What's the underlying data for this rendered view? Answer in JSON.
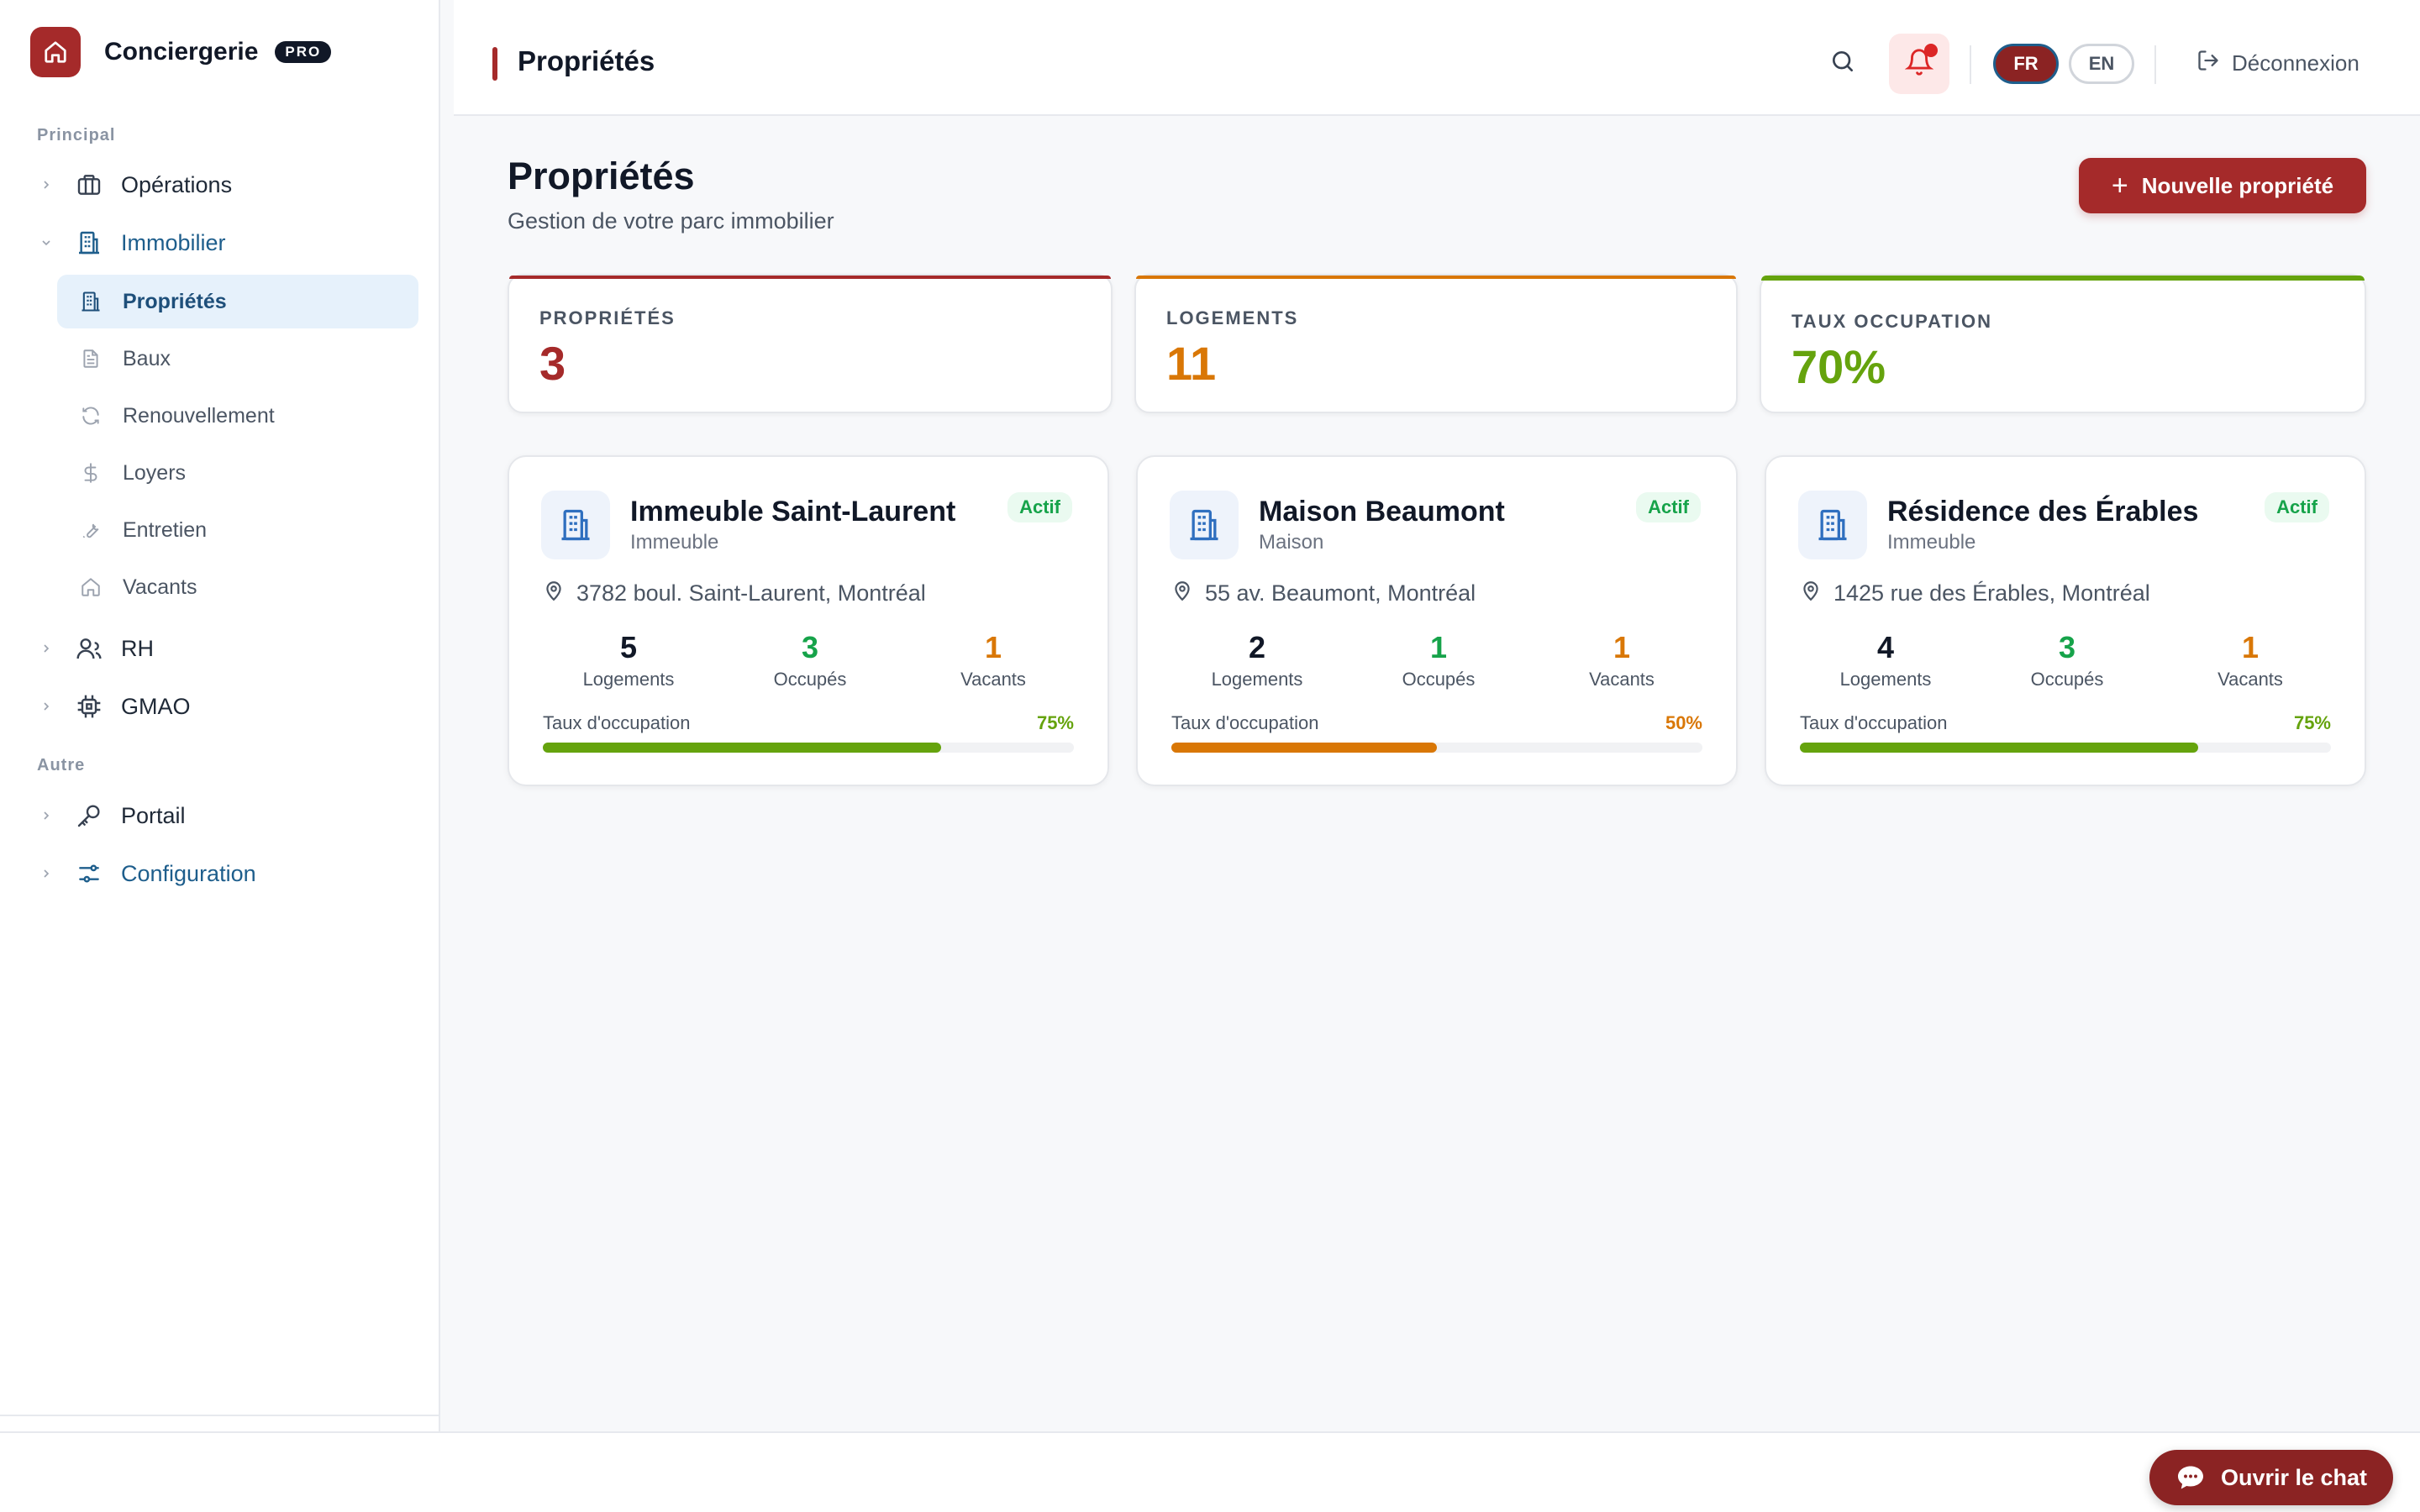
{
  "brand": {
    "name": "Conciergerie",
    "badge": "PRO"
  },
  "sidebar": {
    "sections": {
      "principal": "Principal",
      "autre": "Autre"
    },
    "items": {
      "operations": "Opérations",
      "immobilier": "Immobilier",
      "rh": "RH",
      "gmao": "GMAO",
      "portail": "Portail",
      "configuration": "Configuration"
    },
    "subitems": {
      "proprietes": "Propriétés",
      "baux": "Baux",
      "renouvellement": "Renouvellement",
      "loyers": "Loyers",
      "entretien": "Entretien",
      "vacants": "Vacants"
    }
  },
  "topbar": {
    "title": "Propriétés",
    "lang_fr": "FR",
    "lang_en": "EN",
    "logout": "Déconnexion"
  },
  "main": {
    "title": "Propriétés",
    "subtitle": "Gestion de votre parc immobilier",
    "new_button": "Nouvelle propriété",
    "stats": [
      {
        "label": "PROPRIÉTÉS",
        "value": "3",
        "color": "#a52a2a"
      },
      {
        "label": "LOGEMENTS",
        "value": "11",
        "color": "#d97706"
      },
      {
        "label": "TAUX OCCUPATION",
        "value": "70%",
        "color": "#65a30d"
      }
    ],
    "properties": [
      {
        "name": "Immeuble Saint-Laurent",
        "type": "Immeuble",
        "status": "Actif",
        "address": "3782 boul. Saint-Laurent, Montréal",
        "logements": "5",
        "occupes": "3",
        "vacants": "1",
        "occupation_label": "Taux d'occupation",
        "occupation": "75%",
        "occupation_value": 75,
        "occupation_color": "#65a30d"
      },
      {
        "name": "Maison Beaumont",
        "type": "Maison",
        "status": "Actif",
        "address": "55 av. Beaumont, Montréal",
        "logements": "2",
        "occupes": "1",
        "vacants": "1",
        "occupation_label": "Taux d'occupation",
        "occupation": "50%",
        "occupation_value": 50,
        "occupation_color": "#d97706"
      },
      {
        "name": "Résidence des Érables",
        "type": "Immeuble",
        "status": "Actif",
        "address": "1425 rue des Érables, Montréal",
        "logements": "4",
        "occupes": "3",
        "vacants": "1",
        "occupation_label": "Taux d'occupation",
        "occupation": "75%",
        "occupation_value": 75,
        "occupation_color": "#65a30d"
      }
    ],
    "stat_captions": {
      "logements": "Logements",
      "occupes": "Occupés",
      "vacants": "Vacants"
    }
  },
  "chat": {
    "label": "Ouvrir le chat"
  }
}
